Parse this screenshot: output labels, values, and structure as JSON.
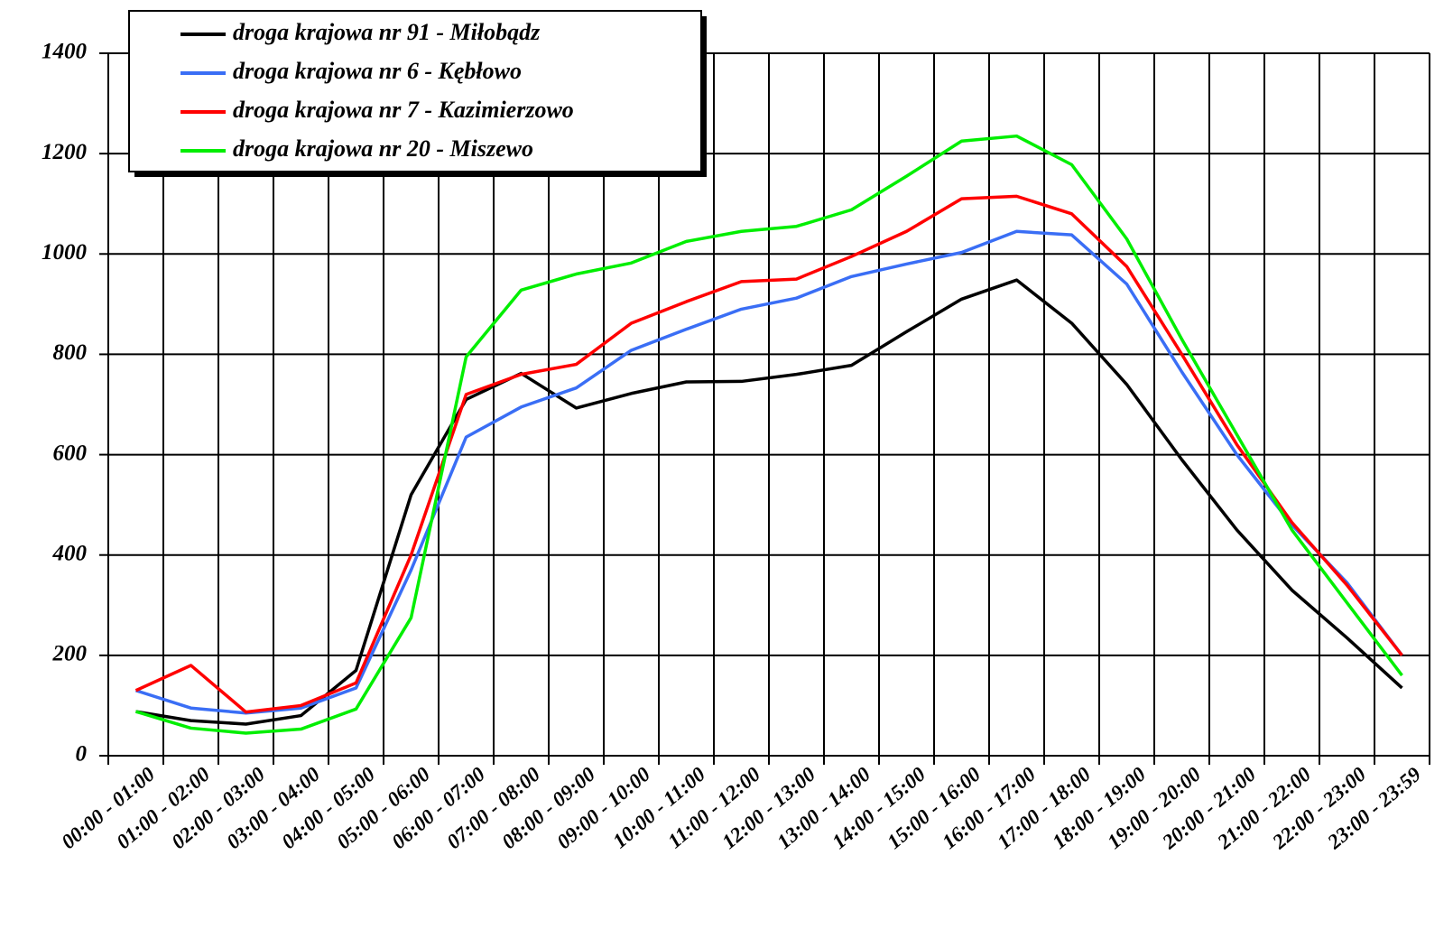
{
  "chart_data": {
    "type": "line",
    "categories": [
      "00:00 - 01:00",
      "01:00 - 02:00",
      "02:00 - 03:00",
      "03:00 - 04:00",
      "04:00 - 05:00",
      "05:00 - 06:00",
      "06:00 - 07:00",
      "07:00 - 08:00",
      "08:00 - 09:00",
      "09:00 - 10:00",
      "10:00 - 11:00",
      "11:00 - 12:00",
      "12:00 - 13:00",
      "13:00 - 14:00",
      "14:00 - 15:00",
      "15:00 - 16:00",
      "16:00 - 17:00",
      "17:00 - 18:00",
      "18:00 - 19:00",
      "19:00 - 20:00",
      "20:00 - 21:00",
      "21:00 - 22:00",
      "22:00 - 23:00",
      "23:00 - 23:59"
    ],
    "series": [
      {
        "name": "droga krajowa nr 91 - Miłobądz",
        "color": "#000000",
        "values": [
          88,
          70,
          63,
          80,
          170,
          520,
          710,
          762,
          693,
          722,
          745,
          746,
          760,
          778,
          845,
          910,
          948,
          862,
          740,
          590,
          450,
          330,
          235,
          135
        ]
      },
      {
        "name": "droga krajowa nr 6 - Kębłowo",
        "color": "#3a6ef5",
        "values": [
          130,
          95,
          85,
          95,
          135,
          370,
          635,
          695,
          733,
          808,
          850,
          890,
          912,
          955,
          980,
          1003,
          1045,
          1038,
          940,
          765,
          600,
          460,
          345,
          200
        ]
      },
      {
        "name": "droga krajowa nr 7 -  Kazimierzowo",
        "color": "#ff0000",
        "values": [
          130,
          180,
          87,
          100,
          145,
          400,
          720,
          760,
          780,
          862,
          905,
          945,
          950,
          995,
          1045,
          1110,
          1115,
          1080,
          975,
          800,
          620,
          465,
          340,
          200
        ]
      },
      {
        "name": "droga krajowa nr 20 - Miszewo",
        "color": "#00ee00",
        "values": [
          88,
          55,
          45,
          53,
          93,
          275,
          795,
          928,
          960,
          982,
          1025,
          1045,
          1055,
          1088,
          1155,
          1225,
          1235,
          1178,
          1030,
          830,
          640,
          450,
          305,
          160
        ]
      }
    ],
    "ylim": [
      0,
      1400
    ],
    "yticks": [
      0,
      200,
      400,
      600,
      800,
      1000,
      1200,
      1400
    ],
    "grid": true,
    "legend": "upper left"
  }
}
